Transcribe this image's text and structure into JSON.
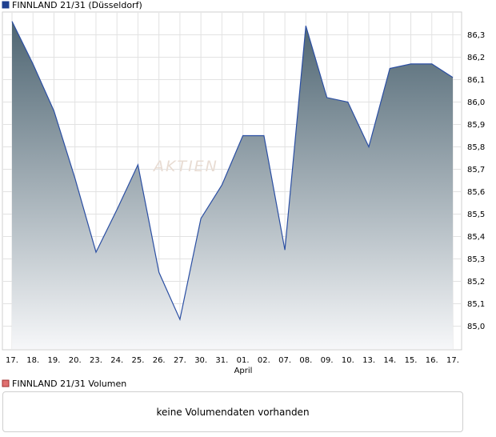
{
  "legend": {
    "price_label": "FINNLAND 21/31 (Düsseldorf)",
    "volume_label": "FINNLAND 21/31 Volumen"
  },
  "volume_panel": {
    "message": "keine Volumendaten vorhanden"
  },
  "watermark": "AKTIEN",
  "colors": {
    "line": "#2b4fa3",
    "area_top": "#4e6572",
    "area_bottom": "#f6f7f9",
    "grid": "#e2e2e2",
    "price_swatch": "#1e3f8f",
    "volume_swatch": "#e07070"
  },
  "chart_data": {
    "type": "area",
    "x_tick_labels": [
      "17.",
      "18.",
      "19.",
      "20.",
      "23.",
      "24.",
      "25.",
      "26.",
      "27.",
      "30.",
      "31.",
      "01.",
      "02.",
      "07.",
      "08.",
      "09.",
      "10.",
      "13.",
      "14.",
      "15.",
      "16.",
      "17."
    ],
    "x_month_label": "April",
    "series": [
      {
        "values": [
          86.36,
          86.17,
          85.96,
          85.66,
          85.33,
          85.52,
          85.72,
          85.24,
          85.03,
          85.48,
          85.63,
          85.85,
          85.85,
          85.34,
          86.34,
          86.02,
          86.0,
          85.8,
          86.15,
          86.17,
          86.17,
          86.11
        ]
      }
    ],
    "y_tick_labels": [
      "86,3",
      "86,2",
      "86,1",
      "86,0",
      "85,9",
      "85,8",
      "85,7",
      "85,6",
      "85,5",
      "85,4",
      "85,3",
      "85,2",
      "85,1",
      "85,0"
    ],
    "y_ticks": [
      86.3,
      86.2,
      86.1,
      86.0,
      85.9,
      85.8,
      85.7,
      85.6,
      85.5,
      85.4,
      85.3,
      85.2,
      85.1,
      85.0
    ],
    "ylim": [
      84.94,
      86.4
    ],
    "grid": true,
    "y_axis_position": "right"
  }
}
